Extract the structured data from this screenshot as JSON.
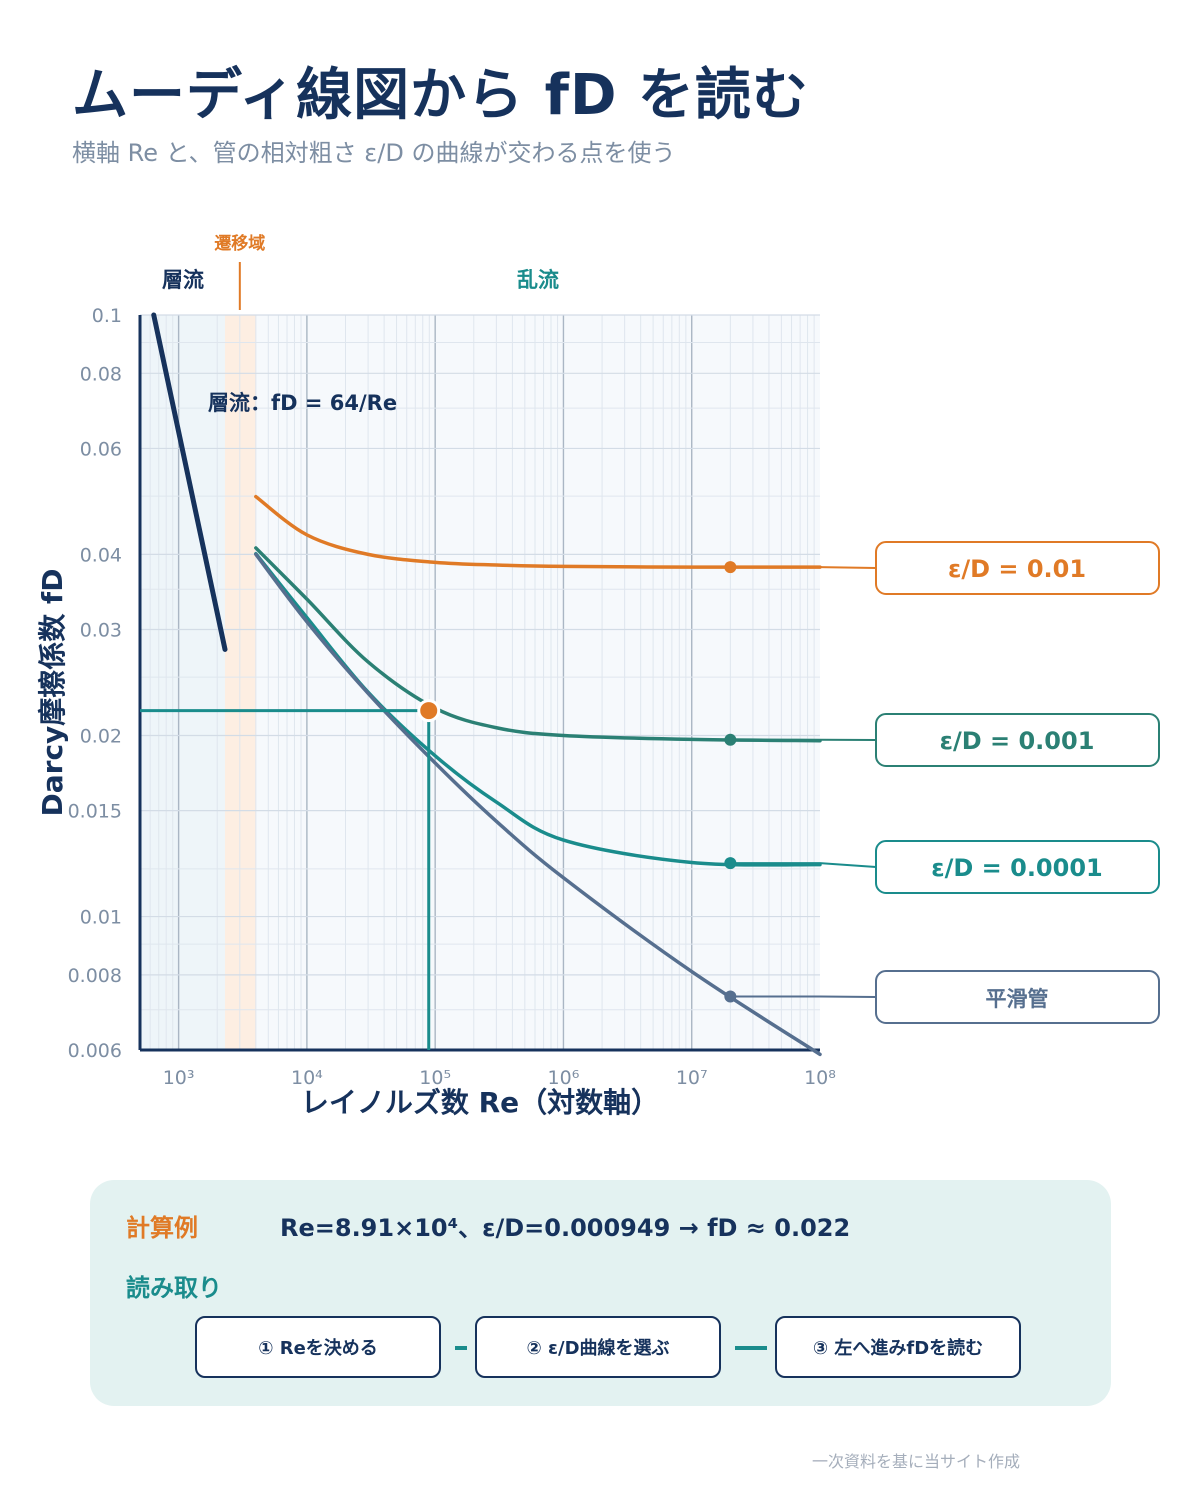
{
  "header": {
    "title": "ムーディ線図から fD を読む",
    "subtitle": "横軸 Re と、管の相対粗さ ε/D の曲線が交わる点を使う"
  },
  "colors": {
    "navy": "#16325c",
    "orange": "#e07a26",
    "teal_dark": "#2b8074",
    "teal": "#1a8c8c",
    "slate": "#566f8f",
    "grid": "#dfe6ee",
    "band_laminar": "#eef5f9",
    "band_transition": "#fdeee2",
    "panel": "#e3f2f1"
  },
  "chart_data": {
    "type": "line",
    "x_scale": "log",
    "y_scale": "log",
    "xlim": [
      500,
      100000000
    ],
    "ylim": [
      0.006,
      0.1
    ],
    "xlabel": "レイノルズ数 Re（対数軸）",
    "ylabel": "Darcy摩擦係数 fD",
    "x_ticks": [
      {
        "value": 1000,
        "label": "10³"
      },
      {
        "value": 10000,
        "label": "10⁴"
      },
      {
        "value": 100000,
        "label": "10⁵"
      },
      {
        "value": 1000000,
        "label": "10⁶"
      },
      {
        "value": 10000000,
        "label": "10⁷"
      },
      {
        "value": 100000000,
        "label": "10⁸"
      }
    ],
    "y_ticks": [
      {
        "value": 0.1,
        "label": "0.1"
      },
      {
        "value": 0.08,
        "label": "0.08"
      },
      {
        "value": 0.06,
        "label": "0.06"
      },
      {
        "value": 0.04,
        "label": "0.04"
      },
      {
        "value": 0.03,
        "label": "0.03"
      },
      {
        "value": 0.02,
        "label": "0.02"
      },
      {
        "value": 0.015,
        "label": "0.015"
      },
      {
        "value": 0.01,
        "label": "0.01"
      },
      {
        "value": 0.008,
        "label": "0.008"
      },
      {
        "value": 0.006,
        "label": "0.006"
      }
    ],
    "regions": [
      {
        "name": "層流",
        "from": 500,
        "to": 2300
      },
      {
        "name": "遷移域",
        "from": 2300,
        "to": 4000
      },
      {
        "name": "乱流",
        "from": 4000,
        "to": 100000000
      }
    ],
    "laminar": {
      "label": "層流：fD = 64/Re",
      "x": [
        640,
        2300
      ],
      "y": [
        0.1,
        0.0278
      ]
    },
    "series": [
      {
        "name": "ε/D = 0.01",
        "relative_roughness": 0.01,
        "color": "#e07a26",
        "x": [
          4000,
          10000,
          30000,
          100000,
          300000,
          1000000,
          10000000,
          100000000
        ],
        "y": [
          0.0499,
          0.0431,
          0.04,
          0.0388,
          0.0384,
          0.0382,
          0.0381,
          0.0381
        ]
      },
      {
        "name": "ε/D = 0.001",
        "relative_roughness": 0.001,
        "color": "#2b8074",
        "x": [
          4000,
          10000,
          30000,
          100000,
          300000,
          1000000,
          10000000,
          100000000
        ],
        "y": [
          0.041,
          0.0337,
          0.0265,
          0.0222,
          0.0206,
          0.02,
          0.0197,
          0.0196
        ]
      },
      {
        "name": "ε/D = 0.0001",
        "relative_roughness": 0.0001,
        "color": "#1a8c8c",
        "x": [
          4000,
          10000,
          30000,
          100000,
          300000,
          1000000,
          10000000,
          100000000
        ],
        "y": [
          0.0401,
          0.0314,
          0.0236,
          0.0185,
          0.0155,
          0.0134,
          0.0123,
          0.0122
        ]
      },
      {
        "name": "平滑管",
        "relative_roughness": 0,
        "color": "#566f8f",
        "x": [
          4000,
          10000,
          30000,
          100000,
          300000,
          1000000,
          10000000,
          100000000
        ],
        "y": [
          0.04,
          0.0309,
          0.0235,
          0.018,
          0.0144,
          0.0116,
          0.0081,
          0.0059
        ]
      }
    ],
    "series_markers_x": 20000000,
    "reading_example": {
      "Re": 89100,
      "fD": 0.022
    }
  },
  "calculation": {
    "label": "計算例",
    "formula": "Re=8.91×10⁴、ε/D=0.000949 → fD ≈ 0.022",
    "reading_label": "読み取り",
    "steps": [
      "① Reを決める",
      "② ε/D曲線を選ぶ",
      "③ 左へ進みfDを読む"
    ]
  },
  "footnote": "一次資料を基に当サイト作成"
}
